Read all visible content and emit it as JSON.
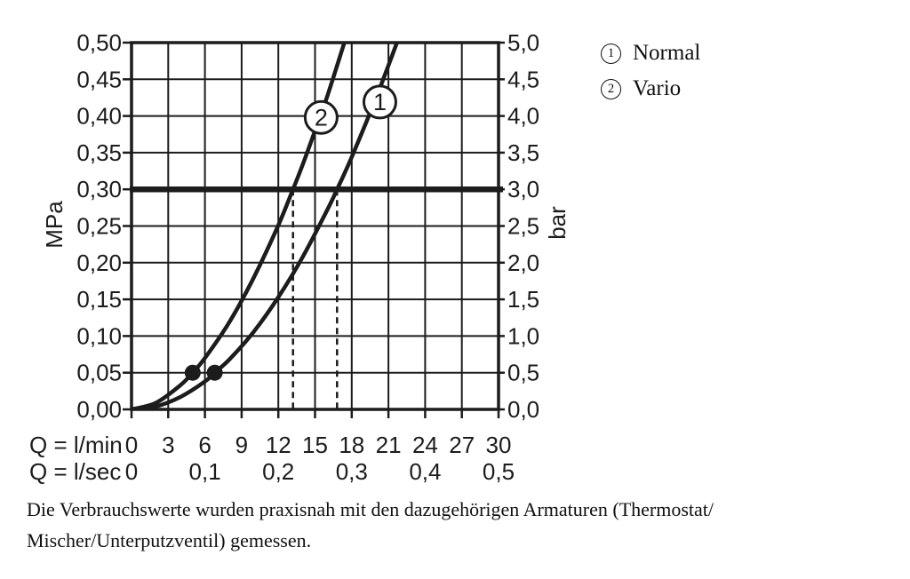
{
  "page": {
    "background": "#ffffff"
  },
  "colors": {
    "ink": "#1c1c1c"
  },
  "legend": {
    "items": [
      {
        "number": "1",
        "label": "Normal"
      },
      {
        "number": "2",
        "label": "Vario"
      }
    ]
  },
  "caption": "Die Verbrauchswerte wurden praxisnah mit den dazugehörigen Armaturen (Thermostat/\nMischer/Unterputzventil) gemessen.",
  "chart_data": {
    "type": "line",
    "title": "",
    "grid": true,
    "x_primary": {
      "label": "Q = l/min",
      "range": [
        0,
        30
      ],
      "tick_step": 3,
      "tick_labels": [
        "0",
        "3",
        "6",
        "9",
        "12",
        "15",
        "18",
        "21",
        "24",
        "27",
        "30"
      ]
    },
    "x_secondary": {
      "label": "Q = l/sec",
      "ticks": [
        {
          "q": 0,
          "label": "0"
        },
        {
          "q": 6,
          "label": "0,1"
        },
        {
          "q": 12,
          "label": "0,2"
        },
        {
          "q": 18,
          "label": "0,3"
        },
        {
          "q": 24,
          "label": "0,4"
        },
        {
          "q": 30,
          "label": "0,5"
        }
      ]
    },
    "y_left": {
      "unit": "MPa",
      "range": [
        0,
        0.5
      ],
      "tick_step": 0.05,
      "tick_labels": [
        "0,00",
        "0,05",
        "0,10",
        "0,15",
        "0,20",
        "0,25",
        "0,30",
        "0,35",
        "0,40",
        "0,45",
        "0,50"
      ]
    },
    "y_right": {
      "unit": "bar",
      "range": [
        0,
        5
      ],
      "tick_step": 0.5,
      "tick_labels": [
        "0,0",
        "0,5",
        "1,0",
        "1,5",
        "2,0",
        "2,5",
        "3,0",
        "3,5",
        "4,0",
        "4,5",
        "5,0"
      ]
    },
    "reference_line": {
      "mpa": 0.3,
      "bar": 3.0
    },
    "series": [
      {
        "number": "1",
        "name": "Normal",
        "points": [
          [
            0,
            0
          ],
          [
            2,
            0.004
          ],
          [
            4,
            0.017
          ],
          [
            6,
            0.038
          ],
          [
            6.8,
            0.05
          ],
          [
            8,
            0.068
          ],
          [
            10,
            0.106
          ],
          [
            12,
            0.153
          ],
          [
            14,
            0.208
          ],
          [
            16,
            0.272
          ],
          [
            16.8,
            0.3
          ],
          [
            18,
            0.344
          ],
          [
            20,
            0.425
          ],
          [
            21.7,
            0.5
          ]
        ],
        "marker": {
          "q": 6.8,
          "mpa": 0.05
        },
        "label_at": {
          "q": 20.3,
          "mpa": 0.419
        },
        "drop_line_q": 16.8
      },
      {
        "number": "2",
        "name": "Vario",
        "points": [
          [
            0,
            0
          ],
          [
            2,
            0.009
          ],
          [
            4,
            0.033
          ],
          [
            5,
            0.05
          ],
          [
            6,
            0.07
          ],
          [
            8,
            0.119
          ],
          [
            10,
            0.18
          ],
          [
            12,
            0.251
          ],
          [
            13.2,
            0.3
          ],
          [
            14,
            0.334
          ],
          [
            15,
            0.38
          ],
          [
            16,
            0.427
          ],
          [
            17.4,
            0.5
          ]
        ],
        "marker": {
          "q": 5.0,
          "mpa": 0.05
        },
        "label_at": {
          "q": 15.5,
          "mpa": 0.398
        },
        "drop_line_q": 13.2
      }
    ]
  }
}
